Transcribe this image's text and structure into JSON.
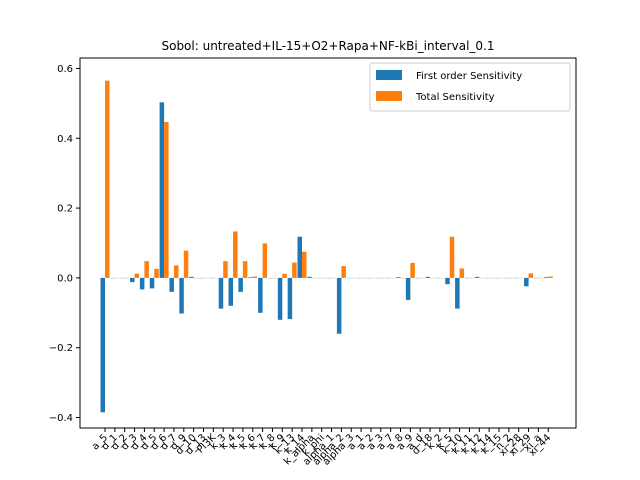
{
  "chart_data": {
    "type": "bar",
    "title": "Sobol: untreated+IL-15+O2+Rapa+NF-kBi_interval_0.1",
    "xlabel": "",
    "ylabel": "",
    "ylim": [
      -0.43,
      0.63
    ],
    "yticks": [
      -0.4,
      -0.2,
      0.0,
      0.2,
      0.4,
      0.6
    ],
    "ytick_labels": [
      "−0.4",
      "−0.2",
      "0.0",
      "0.2",
      "0.4",
      "0.6"
    ],
    "legend_position": "top-right",
    "categories": [
      "a_5",
      "d_1",
      "d_2",
      "d_3",
      "d_4",
      "d_5",
      "d_6",
      "d_7",
      "d_9",
      "d_10",
      "d_13",
      "PI3K",
      "k_3",
      "k_4",
      "k_5",
      "k_6",
      "k_7",
      "k_8",
      "k_9",
      "k_13",
      "k_14",
      "k_alpha",
      "k_phi",
      "alpha_1",
      "alpha_2",
      "alpha_3",
      "a_1",
      "a_2",
      "a_3",
      "a_7",
      "a_8",
      "a_9",
      "a_d",
      "d_18",
      "k_2",
      "k_5",
      "k_10",
      "k_11",
      "k_12",
      "k_14",
      "k_15",
      "n_2",
      "xi_28",
      "xi_29",
      "xi_a",
      "xi_44"
    ],
    "series": [
      {
        "name": "First order Sensitivity",
        "color": "#1f77b4",
        "values": [
          -0.385,
          0.0,
          0.0,
          -0.012,
          -0.033,
          -0.03,
          0.503,
          -0.04,
          -0.102,
          0.003,
          0.0,
          0.0,
          -0.088,
          -0.08,
          -0.04,
          0.002,
          -0.1,
          0.0,
          -0.12,
          -0.118,
          0.118,
          0.003,
          0.0,
          0.0,
          -0.16,
          0.0,
          0.0,
          0.0,
          0.0,
          0.0,
          0.002,
          -0.063,
          0.0,
          0.003,
          0.0,
          -0.018,
          -0.088,
          0.0,
          0.003,
          0.0,
          0.0,
          0.0,
          0.0,
          -0.024,
          0.0,
          0.002
        ]
      },
      {
        "name": "Total Sensitivity",
        "color": "#ff7f0e",
        "values": [
          0.565,
          0.0,
          0.0,
          0.012,
          0.048,
          0.026,
          0.447,
          0.036,
          0.078,
          0.0,
          0.0,
          0.0,
          0.048,
          0.133,
          0.048,
          0.004,
          0.099,
          0.0,
          0.012,
          0.044,
          0.075,
          0.0,
          0.0,
          0.0,
          0.034,
          0.0,
          0.0,
          0.0,
          0.0,
          0.0,
          0.0,
          0.043,
          0.0,
          0.0,
          0.0,
          0.118,
          0.027,
          0.0,
          0.0,
          0.0,
          0.0,
          0.0,
          0.0,
          0.013,
          0.0,
          0.004
        ]
      }
    ]
  }
}
